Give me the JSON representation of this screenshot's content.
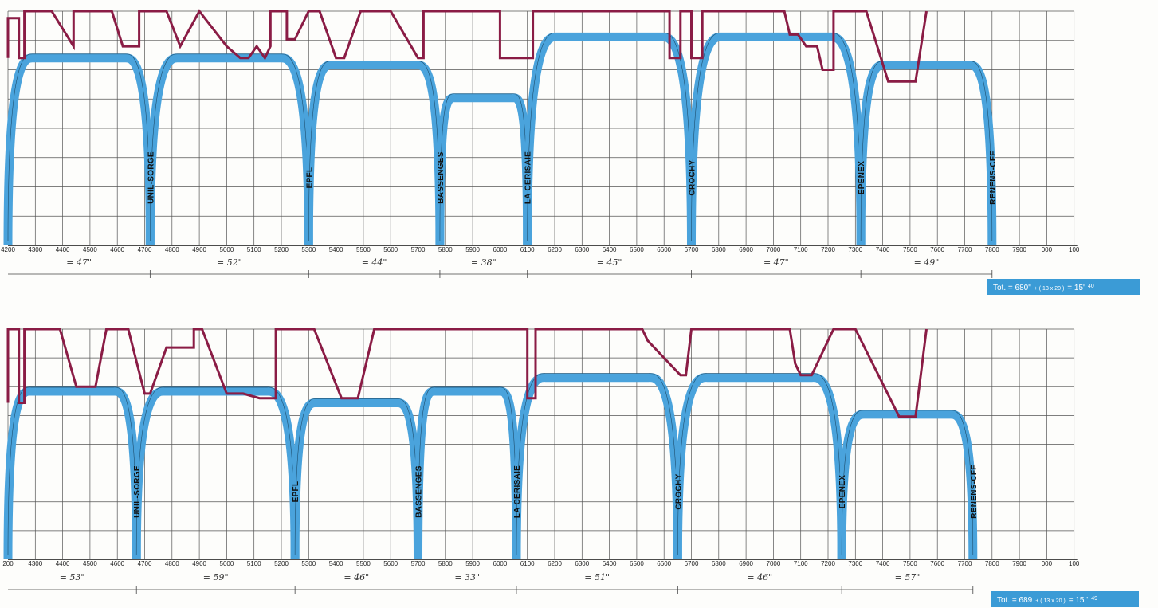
{
  "colors": {
    "speed_profile": "#4aa3dc",
    "speed_limit": "#8a1c45",
    "grid": "#555555",
    "totals_box": "#3b9bd6"
  },
  "chart_data": [
    {
      "type": "line",
      "x_unit": "m",
      "x_ticks": [
        "4200",
        "4300",
        "4400",
        "4500",
        "4600",
        "4700",
        "4800",
        "4900",
        "5000",
        "5100",
        "5200",
        "5300",
        "5400",
        "5500",
        "5600",
        "5700",
        "5800",
        "5900",
        "6000",
        "6100",
        "6200",
        "6300",
        "6400",
        "6500",
        "6600",
        "6700",
        "6800",
        "6900",
        "7000",
        "7100",
        "7200",
        "7300",
        "7400",
        "7500",
        "7600",
        "7700",
        "7800",
        "7900",
        "000",
        "100"
      ],
      "stations": [
        {
          "name": "UNIL-SORGE",
          "x": 4720
        },
        {
          "name": "EPFL",
          "x": 5300
        },
        {
          "name": "BASSENGES",
          "x": 5780
        },
        {
          "name": "LA CERISAIE",
          "x": 6100
        },
        {
          "name": "CROCHY",
          "x": 6700
        },
        {
          "name": "EPENEX",
          "x": 7320
        },
        {
          "name": "RENENS-CFF",
          "x": 7800
        }
      ],
      "segment_times": [
        "= 47\"",
        "= 52\"",
        "= 44\"",
        "= 38\"",
        "= 45\"",
        "= 47\"",
        "= 49\""
      ],
      "total_main": "Tot. = 680\"",
      "total_extra": "+ ( 13 x 20 )",
      "total_result": "= 15'",
      "total_sup": "40",
      "series": [
        {
          "role": "speed_profile",
          "peaks": [
            [
              4200,
              4720,
              0.8
            ],
            [
              4720,
              5300,
              0.8
            ],
            [
              5300,
              5780,
              0.77
            ],
            [
              5780,
              6100,
              0.63
            ],
            [
              6100,
              6700,
              0.89
            ],
            [
              6700,
              7320,
              0.89
            ],
            [
              7320,
              7800,
              0.77
            ]
          ]
        },
        {
          "role": "speed_limit",
          "points": [
            [
              4200,
              0.8
            ],
            [
              4200,
              0.97
            ],
            [
              4240,
              0.97
            ],
            [
              4240,
              0.8
            ],
            [
              4260,
              0.8
            ],
            [
              4260,
              1.0
            ],
            [
              4360,
              1.0
            ],
            [
              4440,
              0.85
            ],
            [
              4440,
              1.0
            ],
            [
              4580,
              1.0
            ],
            [
              4620,
              0.85
            ],
            [
              4680,
              0.85
            ],
            [
              4680,
              1.0
            ],
            [
              4780,
              1.0
            ],
            [
              4830,
              0.85
            ],
            [
              4900,
              1.0
            ],
            [
              5000,
              0.85
            ],
            [
              5050,
              0.8
            ],
            [
              5080,
              0.8
            ],
            [
              5110,
              0.85
            ],
            [
              5140,
              0.8
            ],
            [
              5160,
              0.85
            ],
            [
              5160,
              1.0
            ],
            [
              5220,
              1.0
            ],
            [
              5220,
              0.88
            ],
            [
              5250,
              0.88
            ],
            [
              5300,
              1.0
            ],
            [
              5340,
              1.0
            ],
            [
              5400,
              0.8
            ],
            [
              5430,
              0.8
            ],
            [
              5490,
              1.0
            ],
            [
              5600,
              1.0
            ],
            [
              5700,
              0.8
            ],
            [
              5720,
              0.8
            ],
            [
              5720,
              1.0
            ],
            [
              6000,
              1.0
            ],
            [
              6000,
              0.8
            ],
            [
              6120,
              0.8
            ],
            [
              6120,
              1.0
            ],
            [
              6620,
              1.0
            ],
            [
              6620,
              0.8
            ],
            [
              6660,
              0.8
            ],
            [
              6660,
              1.0
            ],
            [
              6700,
              1.0
            ],
            [
              6700,
              0.8
            ],
            [
              6740,
              0.8
            ],
            [
              6740,
              1.0
            ],
            [
              7040,
              1.0
            ],
            [
              7060,
              0.9
            ],
            [
              7090,
              0.9
            ],
            [
              7120,
              0.85
            ],
            [
              7160,
              0.85
            ],
            [
              7180,
              0.75
            ],
            [
              7220,
              0.75
            ],
            [
              7220,
              1.0
            ],
            [
              7340,
              1.0
            ],
            [
              7420,
              0.7
            ],
            [
              7520,
              0.7
            ],
            [
              7560,
              1.0
            ]
          ]
        }
      ]
    },
    {
      "type": "line",
      "x_unit": "m",
      "x_ticks": [
        "200",
        "4300",
        "4400",
        "4500",
        "4600",
        "4700",
        "4800",
        "4900",
        "5000",
        "5100",
        "5200",
        "5300",
        "5400",
        "5500",
        "5600",
        "5700",
        "5800",
        "5900",
        "6000",
        "6100",
        "6200",
        "6300",
        "6400",
        "6500",
        "6600",
        "6700",
        "6800",
        "6900",
        "7000",
        "7100",
        "7200",
        "7300",
        "7400",
        "7500",
        "7600",
        "7700",
        "7800",
        "7900",
        "000",
        "100"
      ],
      "stations": [
        {
          "name": "UNIL-SORGE",
          "x": 4670
        },
        {
          "name": "EPFL",
          "x": 5250
        },
        {
          "name": "BASSENGES",
          "x": 5700
        },
        {
          "name": "LA CERISAIE",
          "x": 6060
        },
        {
          "name": "CROCHY",
          "x": 6650
        },
        {
          "name": "EPENEX",
          "x": 7250
        },
        {
          "name": "RENENS-CFF",
          "x": 7730
        }
      ],
      "segment_times": [
        "= 53\"",
        "= 59\"",
        "= 46\"",
        "= 33\"",
        "= 51\"",
        "= 46\"",
        "= 57\""
      ],
      "total_main": "Tot. = 689",
      "total_extra": "+ ( 13 x 20 )",
      "total_result": "= 15 '",
      "total_sup": "49",
      "series": [
        {
          "role": "speed_profile",
          "peaks": [
            [
              4200,
              4670,
              0.73
            ],
            [
              4670,
              5250,
              0.73
            ],
            [
              5250,
              5700,
              0.68
            ],
            [
              5700,
              6060,
              0.73
            ],
            [
              6060,
              6650,
              0.79
            ],
            [
              6650,
              7250,
              0.79
            ],
            [
              7250,
              7730,
              0.63
            ]
          ]
        },
        {
          "role": "speed_limit",
          "points": [
            [
              4200,
              0.68
            ],
            [
              4200,
              1.0
            ],
            [
              4240,
              1.0
            ],
            [
              4240,
              0.68
            ],
            [
              4260,
              0.68
            ],
            [
              4260,
              1.0
            ],
            [
              4390,
              1.0
            ],
            [
              4450,
              0.75
            ],
            [
              4520,
              0.75
            ],
            [
              4560,
              1.0
            ],
            [
              4640,
              1.0
            ],
            [
              4700,
              0.72
            ],
            [
              4720,
              0.72
            ],
            [
              4780,
              0.92
            ],
            [
              4880,
              0.92
            ],
            [
              4880,
              1.0
            ],
            [
              4910,
              1.0
            ],
            [
              5000,
              0.72
            ],
            [
              5060,
              0.72
            ],
            [
              5120,
              0.7
            ],
            [
              5180,
              0.7
            ],
            [
              5180,
              1.0
            ],
            [
              5320,
              1.0
            ],
            [
              5420,
              0.7
            ],
            [
              5480,
              0.7
            ],
            [
              5540,
              1.0
            ],
            [
              6100,
              1.0
            ],
            [
              6100,
              0.7
            ],
            [
              6130,
              0.7
            ],
            [
              6130,
              1.0
            ],
            [
              6520,
              1.0
            ],
            [
              6540,
              0.95
            ],
            [
              6580,
              0.9
            ],
            [
              6620,
              0.85
            ],
            [
              6660,
              0.8
            ],
            [
              6680,
              0.8
            ],
            [
              6700,
              1.0
            ],
            [
              7060,
              1.0
            ],
            [
              7080,
              0.85
            ],
            [
              7100,
              0.8
            ],
            [
              7140,
              0.8
            ],
            [
              7160,
              0.85
            ],
            [
              7200,
              0.95
            ],
            [
              7220,
              1.0
            ],
            [
              7300,
              1.0
            ],
            [
              7460,
              0.62
            ],
            [
              7520,
              0.62
            ],
            [
              7560,
              1.0
            ]
          ]
        }
      ]
    }
  ]
}
